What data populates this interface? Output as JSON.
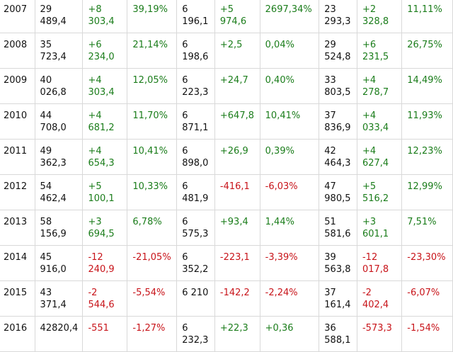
{
  "colors": {
    "positive": "#1b7d1b",
    "negative": "#c8141a",
    "text": "#111111",
    "grid": "#d9d9d9"
  },
  "table": {
    "rows": [
      {
        "year": "2007",
        "c1": "29\n489,4",
        "c2": "+8\n303,4",
        "c3": "39,19%",
        "c4": "6\n196,1",
        "c5": "+5\n974,6",
        "c6": "2697,34%",
        "c7": "23\n293,3",
        "c8": "+2\n328,8",
        "c9": "11,11%",
        "tone": [
          "txt",
          "txt",
          "pos",
          "pos",
          "txt",
          "pos",
          "pos",
          "txt",
          "pos",
          "pos"
        ]
      },
      {
        "year": "2008",
        "c1": "35\n723,4",
        "c2": "+6\n234,0",
        "c3": "21,14%",
        "c4": "6\n198,6",
        "c5": "+2,5",
        "c6": "0,04%",
        "c7": "29\n524,8",
        "c8": "+6\n231,5",
        "c9": "26,75%",
        "tone": [
          "txt",
          "txt",
          "pos",
          "pos",
          "txt",
          "pos",
          "pos",
          "txt",
          "pos",
          "pos"
        ]
      },
      {
        "year": "2009",
        "c1": "40\n026,8",
        "c2": "+4\n303,4",
        "c3": "12,05%",
        "c4": "6\n223,3",
        "c5": "+24,7",
        "c6": "0,40%",
        "c7": "33\n803,5",
        "c8": "+4\n278,7",
        "c9": "14,49%",
        "tone": [
          "txt",
          "txt",
          "pos",
          "pos",
          "txt",
          "pos",
          "pos",
          "txt",
          "pos",
          "pos"
        ]
      },
      {
        "year": "2010",
        "c1": "44\n708,0",
        "c2": "+4\n681,2",
        "c3": "11,70%",
        "c4": "6\n871,1",
        "c5": "+647,8",
        "c6": "10,41%",
        "c7": "37\n836,9",
        "c8": "+4\n033,4",
        "c9": "11,93%",
        "tone": [
          "txt",
          "txt",
          "pos",
          "pos",
          "txt",
          "pos",
          "pos",
          "txt",
          "pos",
          "pos"
        ]
      },
      {
        "year": "2011",
        "c1": "49\n362,3",
        "c2": "+4\n654,3",
        "c3": "10,41%",
        "c4": "6\n898,0",
        "c5": "+26,9",
        "c6": "0,39%",
        "c7": "42\n464,3",
        "c8": "+4\n627,4",
        "c9": "12,23%",
        "tone": [
          "txt",
          "txt",
          "pos",
          "pos",
          "txt",
          "pos",
          "pos",
          "txt",
          "pos",
          "pos"
        ]
      },
      {
        "year": "2012",
        "c1": "54\n462,4",
        "c2": "+5\n100,1",
        "c3": "10,33%",
        "c4": "6\n481,9",
        "c5": "-416,1",
        "c6": "-6,03%",
        "c7": "47\n980,5",
        "c8": "+5\n516,2",
        "c9": "12,99%",
        "tone": [
          "txt",
          "txt",
          "pos",
          "pos",
          "txt",
          "neg",
          "neg",
          "txt",
          "pos",
          "pos"
        ]
      },
      {
        "year": "2013",
        "c1": "58\n156,9",
        "c2": "+3\n694,5",
        "c3": "6,78%",
        "c4": "6\n575,3",
        "c5": "+93,4",
        "c6": "1,44%",
        "c7": "51\n581,6",
        "c8": "+3\n601,1",
        "c9": "7,51%",
        "tone": [
          "txt",
          "txt",
          "pos",
          "pos",
          "txt",
          "pos",
          "pos",
          "txt",
          "pos",
          "pos"
        ]
      },
      {
        "year": "2014",
        "c1": "45\n916,0",
        "c2": "-12\n240,9",
        "c3": "-21,05%",
        "c4": "6\n352,2",
        "c5": "-223,1",
        "c6": "-3,39%",
        "c7": "39\n563,8",
        "c8": "-12\n017,8",
        "c9": "-23,30%",
        "tone": [
          "txt",
          "txt",
          "neg",
          "neg",
          "txt",
          "neg",
          "neg",
          "txt",
          "neg",
          "neg"
        ]
      },
      {
        "year": "2015",
        "c1": "43\n371,4",
        "c2": "-2\n544,6",
        "c3": "-5,54%",
        "c4": "6 210",
        "c5": "-142,2",
        "c6": "-2,24%",
        "c7": "37\n161,4",
        "c8": "-2\n402,4",
        "c9": "-6,07%",
        "tone": [
          "txt",
          "txt",
          "neg",
          "neg",
          "txt",
          "neg",
          "neg",
          "txt",
          "neg",
          "neg"
        ]
      },
      {
        "year": "2016",
        "c1": "42820,4",
        "c2": "-551",
        "c3": "-1,27%",
        "c4": "6\n232,3",
        "c5": "+22,3",
        "c6": "+0,36",
        "c7": "36\n588,1",
        "c8": "-573,3",
        "c9": "-1,54%",
        "tone": [
          "txt",
          "txt",
          "neg",
          "neg",
          "txt",
          "pos",
          "pos",
          "txt",
          "neg",
          "neg"
        ]
      }
    ]
  }
}
